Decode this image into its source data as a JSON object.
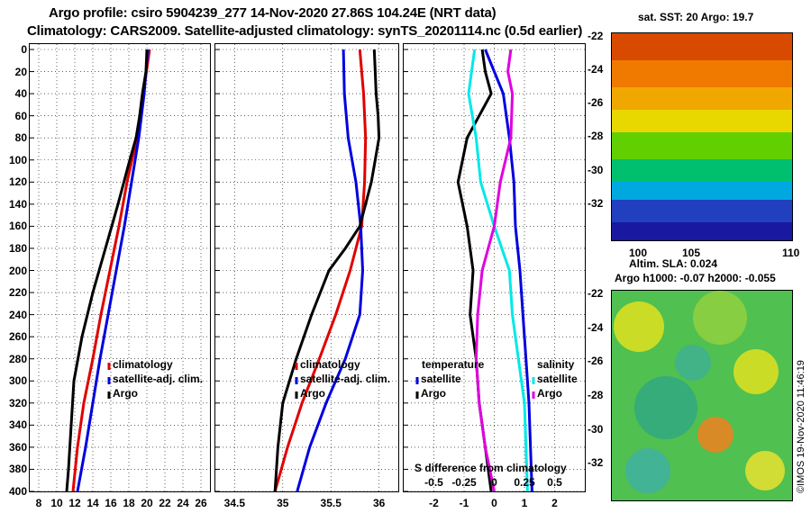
{
  "titles": {
    "line1": "Argo profile: csiro 5904239_277 14-Nov-2020 27.86S 104.24E (NRT data)",
    "line2": "Climatology: CARS2009. Satellite-adjusted climatology: synTS_20201114.nc (0.5d earlier)"
  },
  "colors": {
    "climatology": "#e00000",
    "satellite": "#0000e0",
    "argo": "#000000",
    "salinity_sat": "#00e8e8",
    "salinity_argo": "#e000e0"
  },
  "chart_data": [
    {
      "type": "line",
      "name": "temperature",
      "ylabel": "depth",
      "ylim": [
        0,
        400
      ],
      "yticks": [
        0,
        20,
        40,
        60,
        80,
        100,
        120,
        140,
        160,
        180,
        200,
        220,
        240,
        260,
        280,
        300,
        320,
        340,
        360,
        380,
        400
      ],
      "xlim": [
        7,
        27
      ],
      "xticks": [
        8,
        10,
        12,
        14,
        16,
        18,
        20,
        22,
        24,
        26
      ],
      "legend": [
        "climatology",
        "satellite-adj. clim.",
        "Argo"
      ],
      "series": [
        {
          "name": "climatology",
          "depth": [
            0,
            40,
            80,
            120,
            160,
            200,
            240,
            280,
            320,
            360,
            400
          ],
          "values": [
            20.3,
            19.6,
            18.9,
            17.8,
            16.9,
            15.9,
            14.9,
            14.0,
            13.0,
            12.3,
            11.8
          ]
        },
        {
          "name": "satellite-adj. clim.",
          "depth": [
            0,
            40,
            80,
            120,
            160,
            200,
            240,
            280,
            320,
            360,
            400
          ],
          "values": [
            20.1,
            19.7,
            19.1,
            18.3,
            17.5,
            16.6,
            15.7,
            14.8,
            14.0,
            13.2,
            12.3
          ]
        },
        {
          "name": "Argo",
          "depth": [
            0,
            20,
            40,
            60,
            80,
            100,
            140,
            180,
            220,
            260,
            300,
            340,
            380,
            400
          ],
          "values": [
            20.0,
            19.9,
            19.5,
            19.2,
            18.8,
            18.1,
            16.8,
            15.4,
            14.0,
            12.8,
            11.9,
            11.6,
            11.3,
            11.1
          ]
        }
      ]
    },
    {
      "type": "line",
      "name": "salinity",
      "ylim": [
        0,
        400
      ],
      "xlim": [
        34.3,
        36.2
      ],
      "xticks": [
        34.5,
        35,
        35.5,
        36
      ],
      "legend": [
        "climatology",
        "satellite-adj. clim.",
        "Argo"
      ],
      "series": [
        {
          "name": "climatology",
          "depth": [
            0,
            40,
            80,
            120,
            160,
            200,
            240,
            280,
            320,
            360,
            400
          ],
          "values": [
            35.8,
            35.84,
            35.86,
            35.85,
            35.82,
            35.7,
            35.55,
            35.38,
            35.2,
            35.05,
            34.92
          ]
        },
        {
          "name": "satellite-adj. clim.",
          "depth": [
            0,
            40,
            80,
            120,
            160,
            200,
            240,
            280,
            320,
            360,
            400
          ],
          "values": [
            35.63,
            35.64,
            35.68,
            35.76,
            35.81,
            35.83,
            35.8,
            35.65,
            35.45,
            35.28,
            35.15
          ]
        },
        {
          "name": "Argo",
          "depth": [
            0,
            20,
            40,
            60,
            80,
            100,
            120,
            160,
            180,
            200,
            240,
            280,
            320,
            360,
            400
          ],
          "values": [
            35.95,
            35.96,
            35.97,
            35.99,
            36.0,
            35.96,
            35.92,
            35.8,
            35.65,
            35.48,
            35.3,
            35.14,
            35.0,
            34.95,
            34.92
          ]
        }
      ]
    },
    {
      "type": "line",
      "name": "difference",
      "ylim": [
        0,
        400
      ],
      "xlim": [
        -3,
        3
      ],
      "xticks": [
        -2,
        -1,
        0,
        1,
        2
      ],
      "xticks_s": [
        "-0.5",
        "-0.25",
        "0",
        "0.25",
        "0.5"
      ],
      "xlabel": "S difference from climatology",
      "legend_left": {
        "title": "temperature",
        "items": [
          "satellite",
          "Argo"
        ]
      },
      "legend_right": {
        "title": "salinity",
        "items": [
          "satellite",
          "Argo"
        ]
      },
      "series": [
        {
          "name": "temperature satellite",
          "depth": [
            0,
            40,
            80,
            120,
            160,
            200,
            240,
            280,
            320,
            360,
            400
          ],
          "values": [
            -0.3,
            0.3,
            0.5,
            0.65,
            0.7,
            0.85,
            0.95,
            1.05,
            1.15,
            1.2,
            1.25
          ]
        },
        {
          "name": "temperature Argo",
          "depth": [
            0,
            20,
            40,
            80,
            120,
            160,
            200,
            240,
            280,
            320,
            360,
            400
          ],
          "values": [
            -0.4,
            -0.3,
            -0.1,
            -0.9,
            -1.2,
            -0.9,
            -0.7,
            -0.8,
            -0.6,
            -0.5,
            -0.3,
            -0.1
          ]
        },
        {
          "name": "salinity satellite",
          "depth": [
            0,
            40,
            80,
            120,
            160,
            200,
            240,
            280,
            320,
            360,
            400
          ],
          "values": [
            -0.65,
            -0.85,
            -0.6,
            -0.45,
            0.0,
            0.5,
            0.6,
            0.8,
            1.0,
            1.05,
            1.1
          ]
        },
        {
          "name": "salinity Argo",
          "depth": [
            0,
            20,
            40,
            80,
            120,
            160,
            200,
            240,
            280,
            320,
            360,
            400
          ],
          "values": [
            0.55,
            0.45,
            0.6,
            0.55,
            0.2,
            0.0,
            -0.4,
            -0.55,
            -0.6,
            -0.5,
            -0.3,
            0.0
          ]
        }
      ]
    }
  ],
  "maps": {
    "sst": {
      "title": "sat. SST: 20 Argo: 19.7",
      "yticks": [
        "-22",
        "-24",
        "-26",
        "-28",
        "-30",
        "-32"
      ],
      "xticks": [
        "100",
        "105",
        "110"
      ]
    },
    "sla": {
      "title1": "Altim. SLA: 0.024",
      "title2": "Argo h1000: -0.07 h2000: -0.055",
      "yticks": [
        "-22",
        "-24",
        "-26",
        "-28",
        "-30",
        "-32"
      ]
    }
  },
  "credit": "©IMOS 19-Nov-2020 11:46:19"
}
